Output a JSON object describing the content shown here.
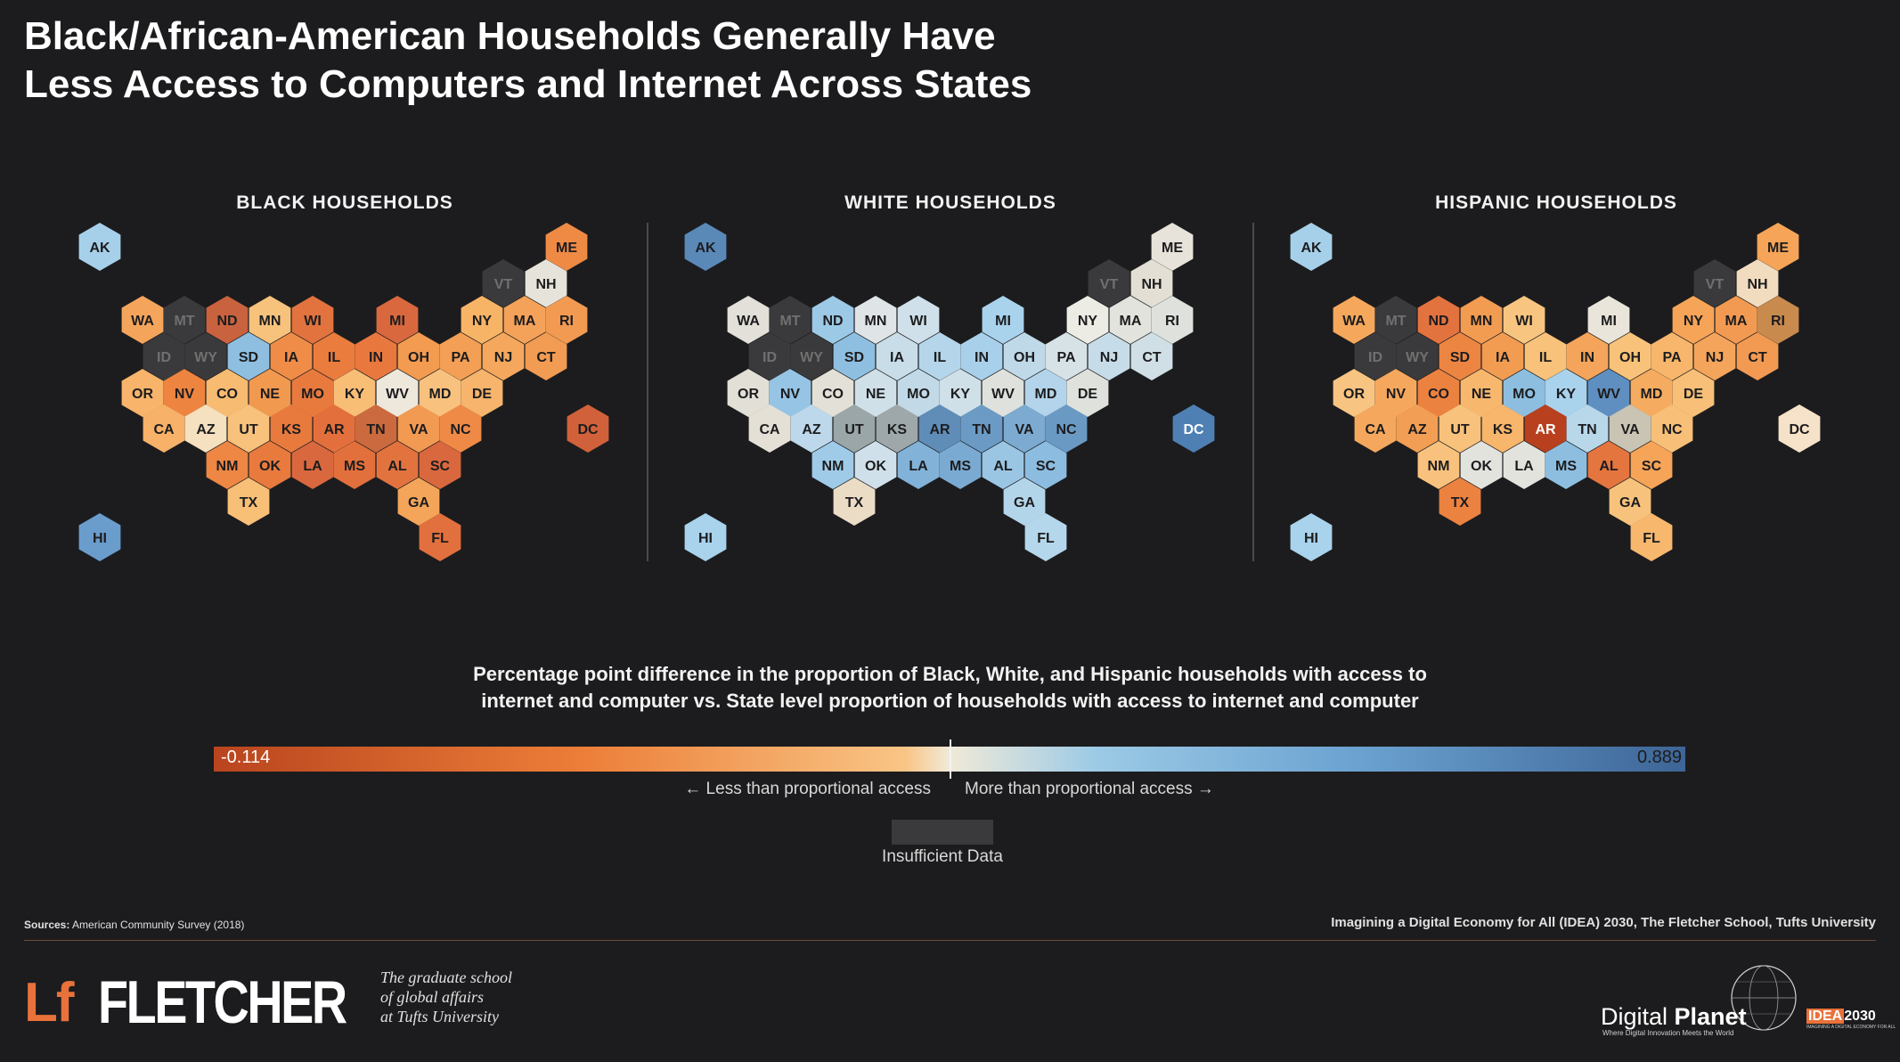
{
  "title_line1": "Black/African-American Households Generally Have",
  "title_line2": "Less Access to Computers and Internet Across States",
  "maps": [
    {
      "title": "BLACK HOUSEHOLDS",
      "states": {
        "AK": "#a6d0ea",
        "ME": "#ef8a45",
        "VT": "#3a3a3c",
        "NH": "#e6e3da",
        "WA": "#f5a55b",
        "MT": "#3a3a3c",
        "ND": "#c9623e",
        "MN": "#f7c27c",
        "WI": "#e2733f",
        "MI": "#d9683e",
        "NY": "#f8b466",
        "MA": "#f4a25a",
        "RI": "#f29a52",
        "ID": "#3a3a3c",
        "WY": "#3a3a3c",
        "SD": "#8fbfe0",
        "IA": "#ef8d48",
        "IL": "#ea7c3e",
        "IN": "#e9783e",
        "OH": "#f39b50",
        "PA": "#f39f55",
        "NJ": "#f5a85d",
        "CT": "#f29b53",
        "OR": "#f7b46a",
        "NV": "#ed843f",
        "CO": "#f8bb72",
        "NE": "#f29950",
        "MO": "#e97a3e",
        "KY": "#f8be76",
        "WV": "#eee7dc",
        "MD": "#f8c27e",
        "DE": "#f6b46c",
        "CA": "#f7b168",
        "AZ": "#f5e0bf",
        "UT": "#f8c27c",
        "KS": "#e97a3e",
        "AR": "#e3703c",
        "TN": "#cc6a3f",
        "VA": "#f29a52",
        "NC": "#ee8a46",
        "DC": "#d1613a",
        "NM": "#ee8644",
        "OK": "#e87a3e",
        "LA": "#d9683e",
        "MS": "#e2703c",
        "AL": "#e2733f",
        "SC": "#d9683e",
        "TX": "#f8bf77",
        "GA": "#f4a559",
        "FL": "#e2703e",
        "HI": "#6a9ccc"
      }
    },
    {
      "title": "WHITE HOUSEHOLDS",
      "states": {
        "AK": "#5a89b8",
        "ME": "#e8e3da",
        "VT": "#3a3a3c",
        "NH": "#e4dfd4",
        "WA": "#e2e0d8",
        "MT": "#3a3a3c",
        "ND": "#9cc9e6",
        "MN": "#dfe5e6",
        "WI": "#cfe0ea",
        "MI": "#a9d2ec",
        "NY": "#ecebe4",
        "MA": "#e3e3de",
        "RI": "#dfe1dc",
        "ID": "#3a3a3c",
        "WY": "#3a3a3c",
        "SD": "#8fbfe0",
        "IA": "#c8dde8",
        "IL": "#b4d5ea",
        "IN": "#a9d0ea",
        "OH": "#c0d9e8",
        "PA": "#d6e2e6",
        "NJ": "#c6dce8",
        "CT": "#d0dfe6",
        "OR": "#e2dfd6",
        "NV": "#96c4e4",
        "CO": "#e3e0d8",
        "NE": "#d0e0e8",
        "MO": "#c2dae8",
        "KY": "#d0e0e8",
        "WV": "#dfe1dc",
        "MD": "#b3d4ea",
        "DE": "#dfe1dc",
        "CA": "#e5e0d6",
        "AZ": "#bcd8ea",
        "UT": "#9aa6a8",
        "KS": "#9ea8aa",
        "AR": "#5f8db8",
        "TN": "#6b9bc4",
        "VA": "#7caad0",
        "NC": "#6a9ac4",
        "DC": "#4f80b4",
        "NM": "#9fcbe8",
        "OK": "#cfe0ea",
        "LA": "#82b2d8",
        "MS": "#7aaad2",
        "AL": "#9ac6e4",
        "SC": "#8cbce0",
        "TX": "#ebdcc6",
        "GA": "#b3d5ea",
        "FL": "#b4d7ec",
        "HI": "#a9d2ec"
      }
    },
    {
      "title": "HISPANIC HOUSEHOLDS",
      "states": {
        "AK": "#a6d0ea",
        "ME": "#f5a458",
        "VT": "#3a3a3c",
        "NH": "#f2dcc0",
        "WA": "#f5a85b",
        "MT": "#3a3a3c",
        "ND": "#e2733f",
        "MN": "#f29c52",
        "WI": "#f7c580",
        "MI": "#e9e5da",
        "NY": "#f5a458",
        "MA": "#f29a52",
        "RI": "#c98a4e",
        "ID": "#3a3a3c",
        "WY": "#3a3a3c",
        "SD": "#ec8542",
        "IA": "#f29c52",
        "IL": "#f8c27a",
        "IN": "#f4a55b",
        "OH": "#f8c27a",
        "PA": "#f7b66c",
        "NJ": "#f5a55b",
        "CT": "#f29a52",
        "OR": "#f8c482",
        "NV": "#f5a85d",
        "CO": "#ec8240",
        "NE": "#f7b86e",
        "MO": "#8dbee0",
        "KY": "#a9d2ec",
        "WV": "#5f8fc0",
        "MD": "#f5ac60",
        "DE": "#f7bf77",
        "CA": "#f5a85d",
        "AZ": "#f29e54",
        "UT": "#f8c27c",
        "KS": "#f7b66c",
        "AR": "#b8401e",
        "TN": "#b8d8ea",
        "VA": "#c9c4b4",
        "NC": "#f7bf77",
        "DC": "#f6e2c8",
        "NM": "#f8c27e",
        "OK": "#e3e3de",
        "LA": "#e3e3de",
        "MS": "#8dbee0",
        "AL": "#e5753e",
        "SC": "#f5a458",
        "TX": "#ec8240",
        "GA": "#f7c27c",
        "FL": "#f7b86e",
        "HI": "#a9d2ec"
      }
    }
  ],
  "legend_line1": "Percentage point difference in the proportion of Black, White, and Hispanic households with access to",
  "legend_line2": "internet and computer vs. State level proportion of households with access to internet and computer",
  "scale_min": "-0.114",
  "scale_max": "0.889",
  "less_label": "← Less than proportional access",
  "more_label": "More than proportional access →",
  "insufficient_label": "Insufficient Data",
  "sources_label": "Sources:",
  "sources_text": " American Community Survey (2018)",
  "credit": "Imagining a Digital Economy for All (IDEA) 2030, The Fletcher School, Tufts University",
  "logo_mark": "Lf",
  "logo_word": "FLETCHER",
  "tagline": [
    "The graduate school",
    "of global affairs",
    "at Tufts University"
  ],
  "dp_name_light": "Digital ",
  "dp_name_bold": "Planet",
  "dp_sub": "Where Digital Innovation Meets the World",
  "idea_box": "IDEA",
  "idea_year": "2030",
  "idea_sub": "IMAGINING A DIGITAL ECONOMY FOR ALL"
}
